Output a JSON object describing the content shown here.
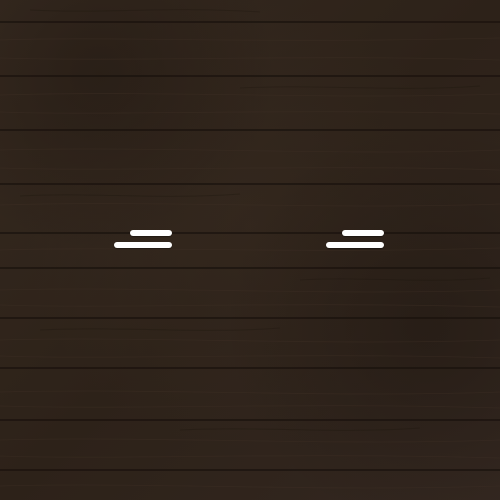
{
  "background": {
    "texture": "dark-wood-planks",
    "base_color": "#2f241d",
    "plank_line_color": "#1a120d",
    "highlight_color": "#3a2c22"
  },
  "marks": [
    {
      "name": "left-eye-mark",
      "color": "#ffffff"
    },
    {
      "name": "right-eye-mark",
      "color": "#ffffff"
    }
  ]
}
